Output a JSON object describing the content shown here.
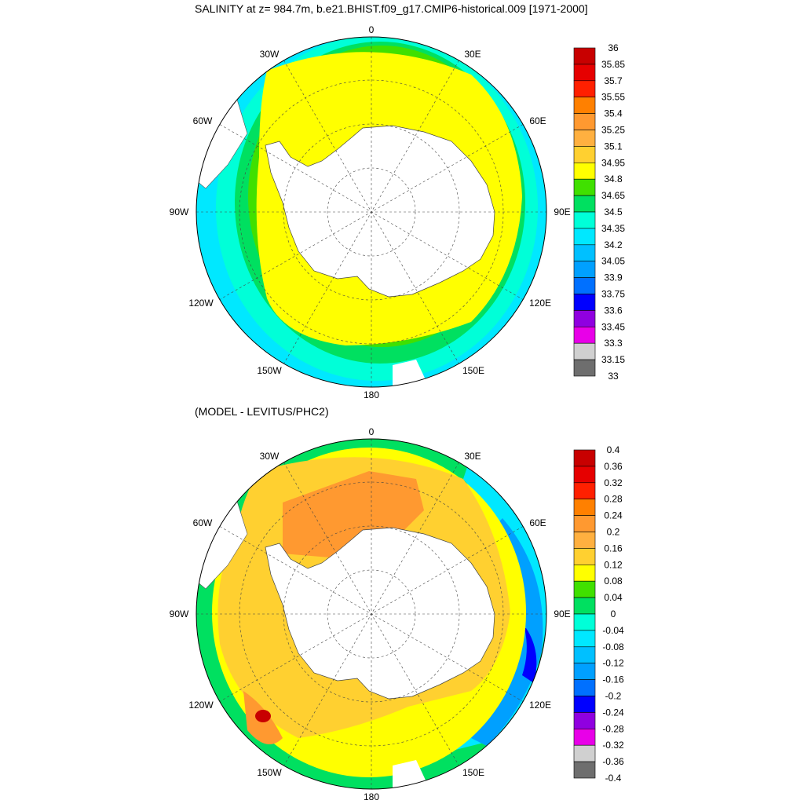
{
  "panel_top": {
    "title": "SALINITY at z= 984.7m, b.e21.BHIST.f09_g17.CMIP6-historical.009 [1971-2000]",
    "lon_labels": [
      "0",
      "30E",
      "60E",
      "90E",
      "120E",
      "150E",
      "180",
      "150W",
      "120W",
      "90W",
      "60W",
      "30W"
    ],
    "colorbar_labels": [
      "36",
      "35.85",
      "35.7",
      "35.55",
      "35.4",
      "35.25",
      "35.1",
      "34.95",
      "34.8",
      "34.65",
      "34.5",
      "34.35",
      "34.2",
      "34.05",
      "33.9",
      "33.75",
      "33.6",
      "33.45",
      "33.3",
      "33.15",
      "33"
    ],
    "colorbar_colors": [
      "#c80000",
      "#e60000",
      "#ff2000",
      "#ff8000",
      "#ff9930",
      "#ffb040",
      "#ffd030",
      "#ffff00",
      "#40e000",
      "#00e060",
      "#00ffd8",
      "#00e8ff",
      "#00c0ff",
      "#00a0ff",
      "#0070ff",
      "#0000ff",
      "#9000e0",
      "#e800e8",
      "#d0d0d0",
      "#6e6e6e"
    ]
  },
  "panel_bottom": {
    "title": "(MODEL - LEVITUS/PHC2)",
    "lon_labels": [
      "0",
      "30E",
      "60E",
      "90E",
      "120E",
      "150E",
      "180",
      "150W",
      "120W",
      "90W",
      "60W",
      "30W"
    ],
    "colorbar_labels": [
      "0.4",
      "0.36",
      "0.32",
      "0.28",
      "0.24",
      "0.2",
      "0.16",
      "0.12",
      "0.08",
      "0.04",
      "0",
      "-0.04",
      "-0.08",
      "-0.12",
      "-0.16",
      "-0.2",
      "-0.24",
      "-0.28",
      "-0.32",
      "-0.36",
      "-0.4"
    ],
    "colorbar_colors": [
      "#c80000",
      "#e60000",
      "#ff2000",
      "#ff8000",
      "#ff9930",
      "#ffb040",
      "#ffd030",
      "#ffff00",
      "#40e000",
      "#00e060",
      "#00ffd8",
      "#00e8ff",
      "#00c0ff",
      "#00a0ff",
      "#0070ff",
      "#0000ff",
      "#9000e0",
      "#e800e8",
      "#d0d0d0",
      "#6e6e6e"
    ]
  }
}
